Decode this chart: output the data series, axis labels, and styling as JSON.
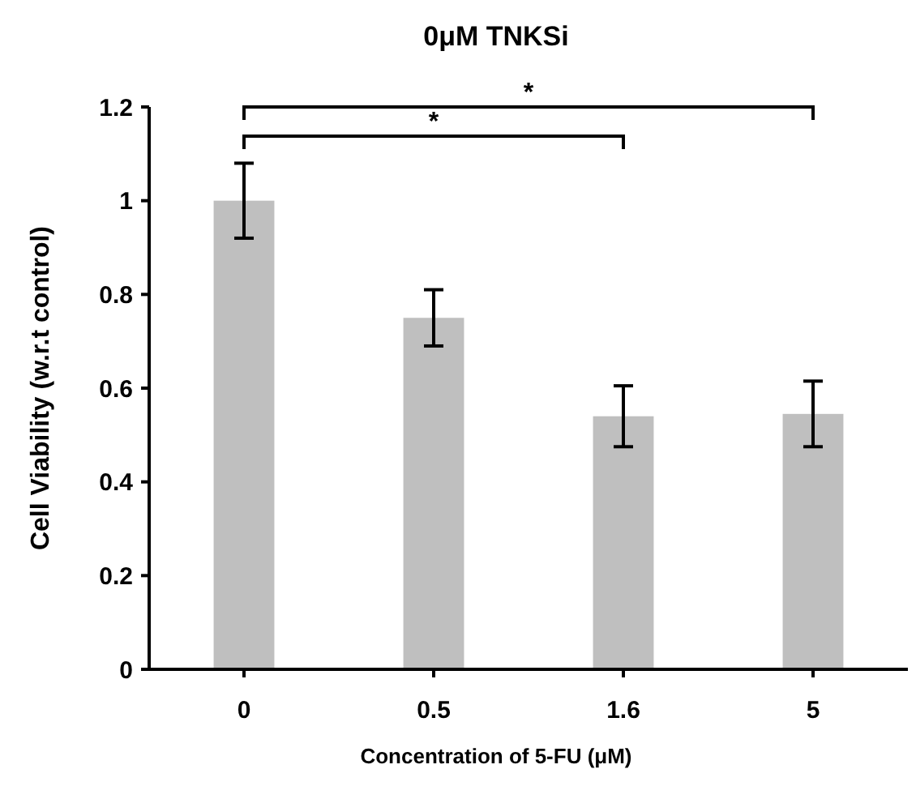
{
  "chart_data": {
    "type": "bar",
    "title": "0μM TNKSi",
    "xlabel": "Concentration of 5-FU (μM)",
    "ylabel": "Cell Viability (w.r.t control)",
    "categories": [
      "0",
      "0.5",
      "1.6",
      "5"
    ],
    "values": [
      1.0,
      0.75,
      0.54,
      0.545
    ],
    "errors": [
      0.08,
      0.06,
      0.065,
      0.07
    ],
    "color": "#bfbfbf",
    "ylim": [
      0,
      1.2
    ],
    "yticks": [
      0,
      0.2,
      0.4,
      0.6,
      0.8,
      1,
      1.2
    ],
    "annotations": [
      "*",
      "*"
    ]
  }
}
